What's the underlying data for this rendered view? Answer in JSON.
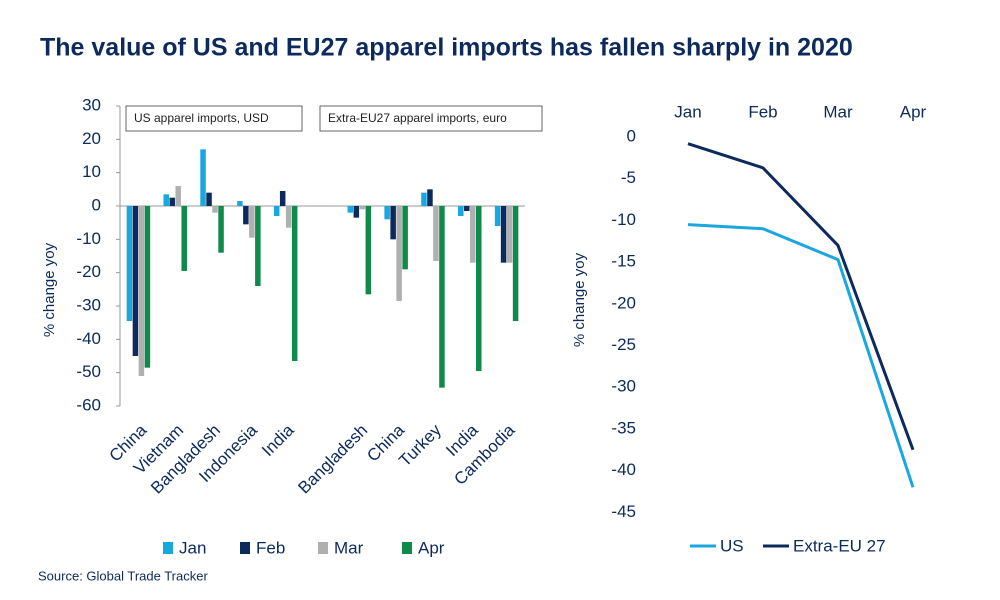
{
  "title": "The value of US and EU27 apparel imports has fallen sharply in 2020",
  "source": "Source: Global Trade Tracker",
  "chart_data": [
    {
      "type": "bar",
      "ylabel": "% change yoy",
      "annotations": [
        "US apparel imports, USD",
        "Extra-EU27 apparel imports, euro"
      ],
      "categories": [
        "China",
        "Vietnam",
        "Bangladesh",
        "Indonesia",
        "India",
        null,
        "Bangladesh",
        "China",
        "Turkey",
        "India",
        "Cambodia"
      ],
      "series": [
        {
          "name": "Jan",
          "color": "#1aa7e0",
          "values": [
            -34.5,
            3.5,
            17,
            1.5,
            -3,
            null,
            -2,
            -4,
            4,
            -3,
            -6
          ]
        },
        {
          "name": "Feb",
          "color": "#0d2a5c",
          "values": [
            -45,
            2.5,
            4,
            -5.5,
            4.5,
            null,
            -3.5,
            -10,
            5,
            -1.5,
            -17
          ]
        },
        {
          "name": "Mar",
          "color": "#b0b0b0",
          "values": [
            -51,
            6,
            -2,
            -9.5,
            -6.5,
            null,
            -1,
            -28.5,
            -16.5,
            -17,
            -17
          ]
        },
        {
          "name": "Apr",
          "color": "#0e8a4a",
          "values": [
            -48.5,
            -19.5,
            -14,
            -24,
            -46.5,
            null,
            -26.5,
            -19,
            -54.5,
            -49.5,
            -34.5
          ]
        }
      ],
      "ylim": [
        -60,
        30
      ],
      "yticks": [
        -60,
        -50,
        -40,
        -30,
        -20,
        -10,
        0,
        10,
        20,
        30
      ]
    },
    {
      "type": "line",
      "ylabel": "% change yoy",
      "categories": [
        "Jan",
        "Feb",
        "Mar",
        "Apr"
      ],
      "series": [
        {
          "name": "US",
          "color": "#1aa7e0",
          "values": [
            -10.5,
            -11,
            -14.7,
            -42
          ]
        },
        {
          "name": "Extra-EU 27",
          "color": "#0d2a5c",
          "values": [
            -0.8,
            -3.7,
            -13,
            -37.5
          ]
        }
      ],
      "ylim": [
        -47,
        3
      ],
      "yticks": [
        -45,
        -40,
        -35,
        -30,
        -25,
        -20,
        -15,
        -10,
        -5,
        0
      ]
    }
  ]
}
